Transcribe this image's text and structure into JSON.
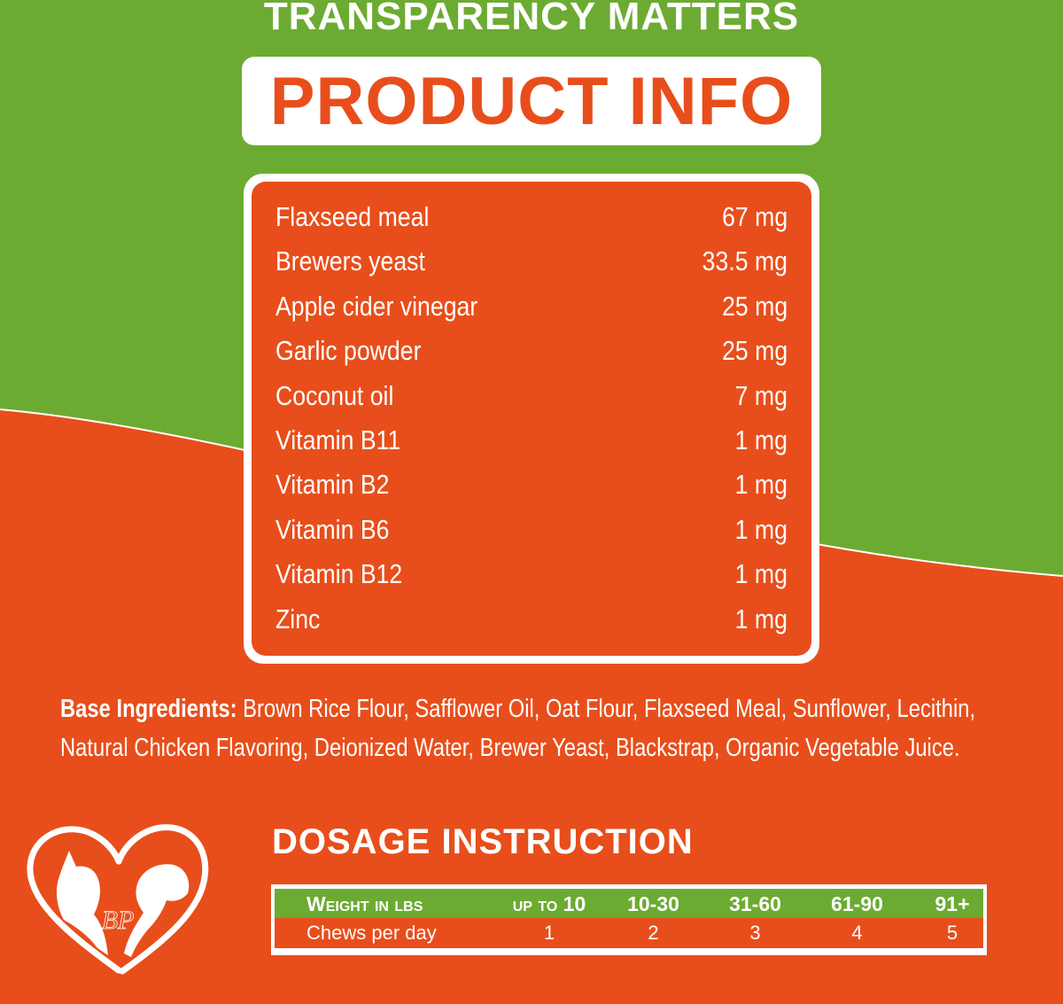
{
  "colors": {
    "green": "#6cab32",
    "orange": "#e84e1b",
    "white": "#ffffff"
  },
  "header": {
    "kicker": "TRANSPARENCY MATTERS",
    "banner": "PRODUCT INFO"
  },
  "ingredients": [
    {
      "name": "Flaxseed meal",
      "amount": "67 mg"
    },
    {
      "name": "Brewers yeast",
      "amount": "33.5 mg"
    },
    {
      "name": "Apple cider vinegar",
      "amount": "25 mg"
    },
    {
      "name": "Garlic powder",
      "amount": "25 mg"
    },
    {
      "name": "Coconut oil",
      "amount": "7 mg"
    },
    {
      "name": "Vitamin B11",
      "amount": "1 mg"
    },
    {
      "name": "Vitamin B2",
      "amount": "1 mg"
    },
    {
      "name": "Vitamin B6",
      "amount": "1 mg"
    },
    {
      "name": "Vitamin B12",
      "amount": "1 mg"
    },
    {
      "name": "Zinc",
      "amount": "1 mg"
    }
  ],
  "base": {
    "label": "Base Ingredients:",
    "text": " Brown Rice Flour, Safflower Oil, Oat Flour, Flaxseed Meal, Sunflower, Lecithin, Natural Chicken Flavoring, Deionized Water, Brewer Yeast, Blackstrap, Organic Vegetable Juice."
  },
  "dosage": {
    "title": "DOSAGE INSTRUCTION",
    "header": {
      "label": "Weight in lbs",
      "cols": [
        "up to 10",
        "10-30",
        "31-60",
        "61-90",
        "91+"
      ]
    },
    "row": {
      "label": "Chews per day",
      "cols": [
        "1",
        "2",
        "3",
        "4",
        "5"
      ]
    }
  },
  "logo": {
    "icon": "heart-pets-logo",
    "monogram": "BP"
  }
}
